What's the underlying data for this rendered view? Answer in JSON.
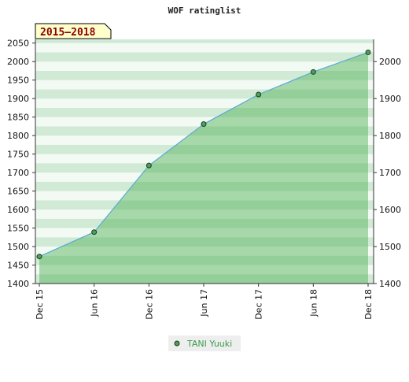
{
  "title": "WOF ratinglist",
  "period_label": "2015–2018",
  "colors": {
    "plot_background": "#e8f5ea",
    "band_light": "#f3faf4",
    "band_dark": "#d0ead6",
    "area_fill": "#4caf50",
    "line": "#5aa9d6",
    "marker_fill": "#4f9e5a",
    "marker_stroke": "#1a3d1f",
    "axis": "#333333",
    "legend_bg": "#eeeeee",
    "legend_text": "#3a9a4f",
    "period_bg": "#ffffcc"
  },
  "chart_data": {
    "type": "area",
    "title": "WOF ratinglist",
    "x": [
      "Dec 15",
      "Jun 16",
      "Dec 16",
      "Jun 17",
      "Dec 17",
      "Jun 18",
      "Dec 18"
    ],
    "series": [
      {
        "name": "TANI Yuuki",
        "values": [
          1473,
          1539,
          1719,
          1831,
          1911,
          1972,
          2025
        ]
      }
    ],
    "left_ylim": [
      1400,
      2060
    ],
    "left_yticks": [
      1400,
      1450,
      1500,
      1550,
      1600,
      1650,
      1700,
      1750,
      1800,
      1850,
      1900,
      1950,
      2000,
      2050
    ],
    "right_yticks": [
      1400,
      1500,
      1600,
      1700,
      1800,
      1900,
      2000
    ],
    "xticks": [
      "Dec 15",
      "Jun 16",
      "Dec 16",
      "Jun 17",
      "Dec 17",
      "Jun 18",
      "Dec 18"
    ],
    "grid": "horizontal-bands",
    "legend_position": "bottom-center"
  }
}
